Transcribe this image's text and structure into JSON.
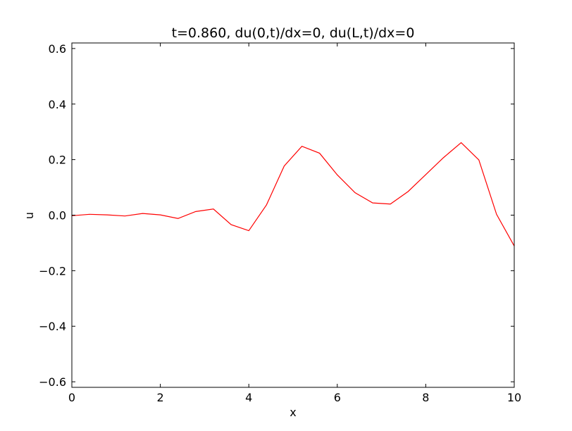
{
  "chart_data": {
    "type": "line",
    "title": "t=0.860, du(0,t)/dx=0, du(L,t)/dx=0",
    "xlabel": "x",
    "ylabel": "u",
    "xlim": [
      0,
      10
    ],
    "ylim": [
      -0.62,
      0.62
    ],
    "xticks": [
      0,
      2,
      4,
      6,
      8,
      10
    ],
    "xtick_labels": [
      "0",
      "2",
      "4",
      "6",
      "8",
      "10"
    ],
    "yticks": [
      -0.6,
      -0.4,
      -0.2,
      0.0,
      0.2,
      0.4,
      0.6
    ],
    "ytick_labels": [
      "−0.6",
      "−0.4",
      "−0.2",
      "0.0",
      "0.2",
      "0.4",
      "0.6"
    ],
    "grid": false,
    "series": [
      {
        "color": "#ff0000",
        "x": [
          0,
          0.4,
          0.8,
          1.2,
          1.6,
          2.0,
          2.4,
          2.8,
          3.2,
          3.6,
          4.0,
          4.4,
          4.8,
          5.2,
          5.6,
          6.0,
          6.4,
          6.8,
          7.2,
          7.6,
          8.0,
          8.4,
          8.8,
          9.2,
          9.6,
          10.0
        ],
        "y": [
          -0.002,
          0.003,
          0.001,
          -0.003,
          0.006,
          0.001,
          -0.012,
          0.013,
          0.022,
          -0.034,
          -0.056,
          0.037,
          0.177,
          0.248,
          0.223,
          0.145,
          0.081,
          0.044,
          0.04,
          0.085,
          0.146,
          0.207,
          0.261,
          0.199,
          0.003,
          -0.111
        ]
      }
    ]
  }
}
